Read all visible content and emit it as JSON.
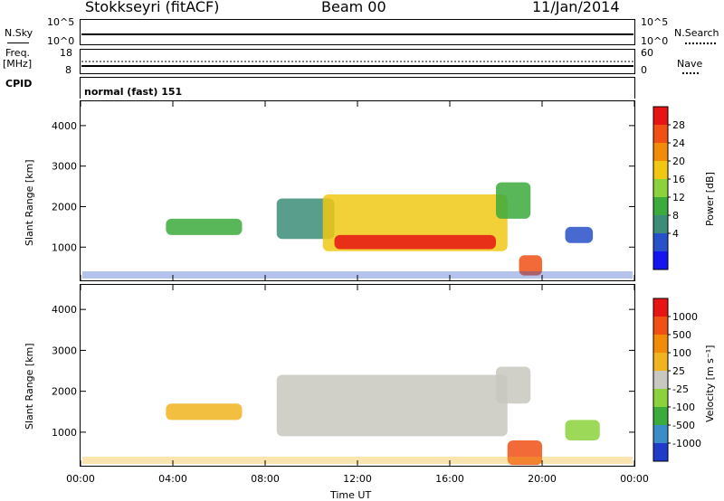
{
  "header": {
    "title": "Stokkseyri (fitACF)",
    "beam": "Beam 00",
    "date": "11/Jan/2014"
  },
  "summary_panel": {
    "nsky_label": "N.Sky",
    "nsearch_label": "N.Search",
    "freq_label": "Freq.",
    "freq_unit": "[MHz]",
    "nave_label": "Nave",
    "cpid_label": "CPID",
    "cpid_value": "normal (fast) 151",
    "noise_ticks_left": [
      "10^5",
      "10^0"
    ],
    "noise_ticks_right": [
      "10^5",
      "10^0"
    ],
    "freq_ticks_left": [
      "18",
      "8"
    ],
    "nave_ticks_right": [
      "60",
      "0"
    ]
  },
  "chart_data": [
    {
      "type": "heatmap",
      "name": "power",
      "ylabel": "Slant Range [km]",
      "xlabel": "",
      "x_ticks": [
        "00:00",
        "04:00",
        "08:00",
        "12:00",
        "16:00",
        "20:00",
        "00:00"
      ],
      "x_range_hours": [
        0,
        24
      ],
      "ylim": [
        180,
        4600
      ],
      "y_ticks": [
        1000,
        2000,
        3000,
        4000
      ],
      "colorbar": {
        "label": "Power [dB]",
        "ticks": [
          "28",
          "24",
          "20",
          "16",
          "12",
          "8",
          "4"
        ],
        "colors": [
          "#1414f0",
          "#2850c8",
          "#3c8c78",
          "#3caa3c",
          "#8cd23c",
          "#f0c814",
          "#f08c0a",
          "#f05014",
          "#e61414"
        ]
      },
      "regions": [
        {
          "h0": 3.7,
          "h1": 7.0,
          "r0": 1300,
          "r1": 1700,
          "level": 3
        },
        {
          "h0": 8.5,
          "h1": 11.0,
          "r0": 1200,
          "r1": 2200,
          "level": 2
        },
        {
          "h0": 10.5,
          "h1": 18.5,
          "r0": 900,
          "r1": 2300,
          "level": 5
        },
        {
          "h0": 11.0,
          "h1": 18.0,
          "r0": 950,
          "r1": 1300,
          "level": 8
        },
        {
          "h0": 18.0,
          "h1": 19.5,
          "r0": 1700,
          "r1": 2600,
          "level": 3
        },
        {
          "h0": 19.0,
          "h1": 20.0,
          "r0": 300,
          "r1": 800,
          "level": 7
        },
        {
          "h0": 21.0,
          "h1": 22.2,
          "r0": 1100,
          "r1": 1500,
          "level": 1
        }
      ]
    },
    {
      "type": "heatmap",
      "name": "velocity",
      "ylabel": "Slant Range [km]",
      "xlabel": "Time UT",
      "x_ticks": [
        "00:00",
        "04:00",
        "08:00",
        "12:00",
        "16:00",
        "20:00",
        "00:00"
      ],
      "x_range_hours": [
        0,
        24
      ],
      "ylim": [
        180,
        4600
      ],
      "y_ticks": [
        1000,
        2000,
        3000,
        4000
      ],
      "colorbar": {
        "label": "Velocity [m s⁻¹]",
        "ticks": [
          "1000",
          "500",
          "100",
          "25",
          "-25",
          "-100",
          "-500",
          "-1000"
        ],
        "colors": [
          "#1e3cc8",
          "#3c8cc8",
          "#3caa3c",
          "#8cd23c",
          "#c8c8c0",
          "#f0b41e",
          "#f08c0a",
          "#f05014",
          "#e61414"
        ]
      },
      "regions": [
        {
          "h0": 3.7,
          "h1": 7.0,
          "r0": 1300,
          "r1": 1700,
          "level": 5
        },
        {
          "h0": 8.5,
          "h1": 18.5,
          "r0": 900,
          "r1": 2400,
          "level": 4
        },
        {
          "h0": 18.0,
          "h1": 19.5,
          "r0": 1700,
          "r1": 2600,
          "level": 4
        },
        {
          "h0": 18.5,
          "h1": 20.0,
          "r0": 200,
          "r1": 800,
          "level": 7
        },
        {
          "h0": 21.0,
          "h1": 22.5,
          "r0": 800,
          "r1": 1300,
          "level": 3
        }
      ]
    }
  ]
}
